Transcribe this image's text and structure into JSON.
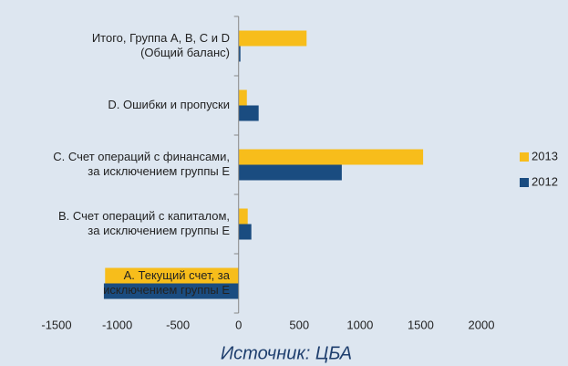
{
  "chart_data": {
    "type": "bar",
    "orientation": "horizontal",
    "categories": [
      [
        "Итого, Группа A, B, C и D",
        "(Общий баланс)"
      ],
      [
        "D. Ошибки и пропуски"
      ],
      [
        "C. Счет операций с финансами,",
        "за исключением группы E"
      ],
      [
        "B. Счет операций с капиталом,",
        "за исключением группы E"
      ],
      [
        "A. Текущий счет, за",
        "исключением группы E"
      ]
    ],
    "series": [
      {
        "name": "2013",
        "color": "#f7bd1b",
        "values": [
          560,
          68,
          1520,
          75,
          -1100
        ]
      },
      {
        "name": "2012",
        "color": "#1a4c80",
        "values": [
          15,
          165,
          850,
          105,
          -1110
        ]
      }
    ],
    "xlim": [
      -1500,
      2000
    ],
    "xticks": [
      -1500,
      -1000,
      -500,
      0,
      500,
      1000,
      1500,
      2000
    ],
    "legend": "right",
    "source": "Источник: ЦБА"
  }
}
